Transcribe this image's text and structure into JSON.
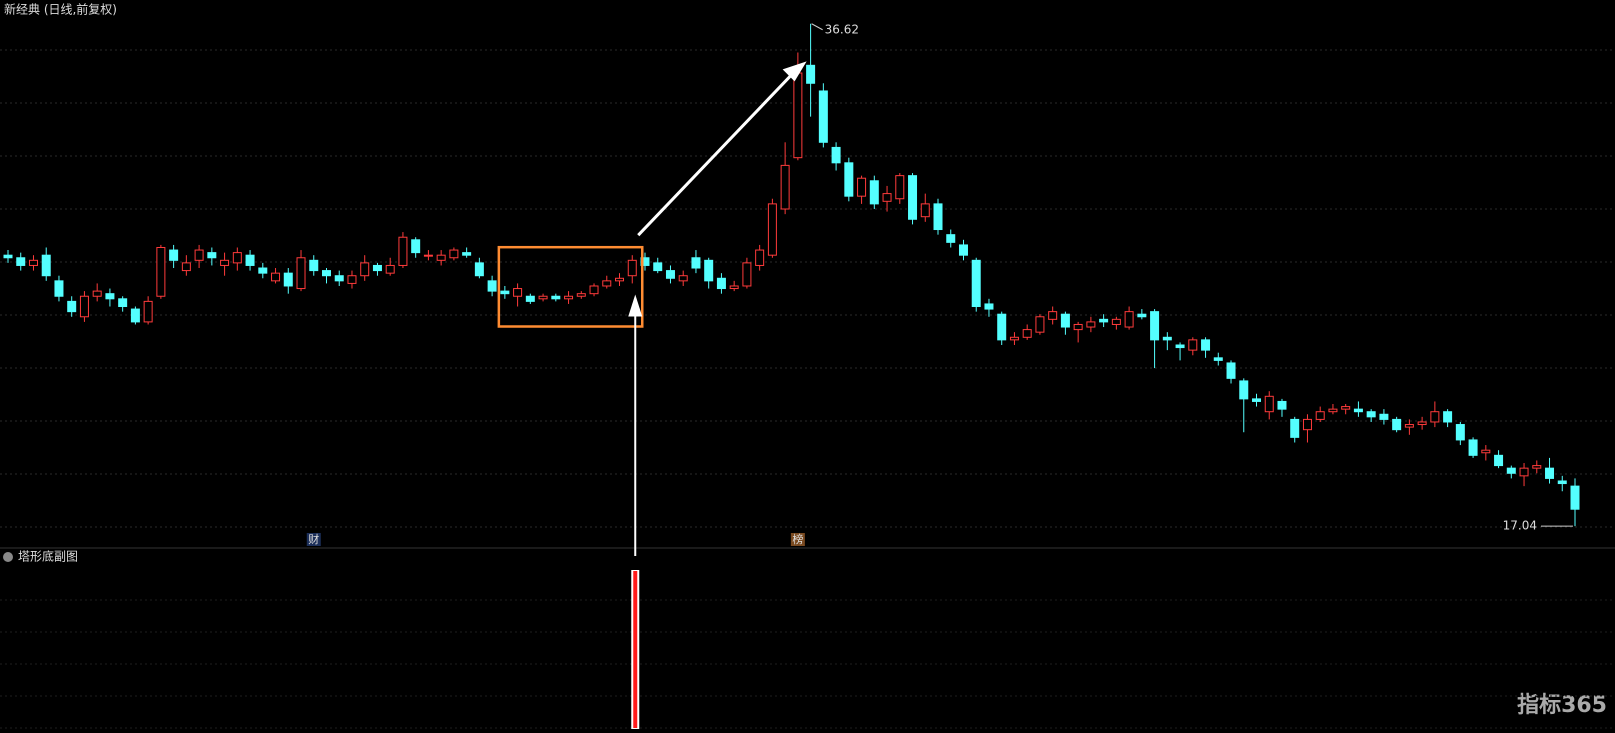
{
  "chart_data": {
    "type": "candlestick",
    "title": "新经典 (日线,前复权)",
    "up_color": "#ff3b3b",
    "down_color": "#54ffff",
    "ylim": [
      16.5,
      37.0
    ],
    "open": [
      27.6,
      27.5,
      27.2,
      27.6,
      26.6,
      25.8,
      25.2,
      26.0,
      26.1,
      25.9,
      25.5,
      25.0,
      26.0,
      27.8,
      27.0,
      27.4,
      27.7,
      27.2,
      27.3,
      27.6,
      27.1,
      26.6,
      26.9,
      26.3,
      27.4,
      27.0,
      26.8,
      26.5,
      26.8,
      27.2,
      26.9,
      27.2,
      28.2,
      27.6,
      27.4,
      27.5,
      27.7,
      27.3,
      26.6,
      26.2,
      26.0,
      26.0,
      25.9,
      26.0,
      25.9,
      26.0,
      26.1,
      26.4,
      26.6,
      26.8,
      27.5,
      27.3,
      27.0,
      26.6,
      27.5,
      27.4,
      26.7,
      26.3,
      26.4,
      27.2,
      27.6,
      29.4,
      31.4,
      35.0,
      34.0,
      31.8,
      31.2,
      29.9,
      30.5,
      29.7,
      29.8,
      30.7,
      29.1,
      29.6,
      28.4,
      28.0,
      27.4,
      25.7,
      25.3,
      24.3,
      24.4,
      24.6,
      25.1,
      25.3,
      24.7,
      24.8,
      25.1,
      24.9,
      24.8,
      25.3,
      25.4,
      24.4,
      24.1,
      23.9,
      24.3,
      23.6,
      23.4,
      22.7,
      22.0,
      21.5,
      21.9,
      21.2,
      20.8,
      21.2,
      21.5,
      21.6,
      21.6,
      21.5,
      21.4,
      21.2,
      20.9,
      21.0,
      21.1,
      21.5,
      21.0,
      20.4,
      19.9,
      19.8,
      19.3,
      19.0,
      19.3,
      19.3,
      18.8,
      18.6
    ],
    "high": [
      27.8,
      27.7,
      27.6,
      27.9,
      26.8,
      26.0,
      26.2,
      26.5,
      26.3,
      26.0,
      25.6,
      26.0,
      28.0,
      28.0,
      27.6,
      28.0,
      27.9,
      27.7,
      27.9,
      27.8,
      27.3,
      27.1,
      27.1,
      27.8,
      27.6,
      27.1,
      27.0,
      27.0,
      27.6,
      27.3,
      27.5,
      28.5,
      28.3,
      27.8,
      27.8,
      27.9,
      27.9,
      27.5,
      26.8,
      26.4,
      26.5,
      26.1,
      26.1,
      26.1,
      26.2,
      26.2,
      26.5,
      26.8,
      26.9,
      27.6,
      27.7,
      27.5,
      27.2,
      27.0,
      27.8,
      27.5,
      26.9,
      26.6,
      27.5,
      28.0,
      29.8,
      32.0,
      35.5,
      36.62,
      34.3,
      32.0,
      31.4,
      30.7,
      30.7,
      30.3,
      30.8,
      30.8,
      30.0,
      29.8,
      28.6,
      28.2,
      27.5,
      25.9,
      25.4,
      24.6,
      24.9,
      25.3,
      25.6,
      25.4,
      25.0,
      25.2,
      25.3,
      25.2,
      25.6,
      25.5,
      25.5,
      24.6,
      24.2,
      24.4,
      24.4,
      23.8,
      23.5,
      22.8,
      22.2,
      22.3,
      22.0,
      21.3,
      21.4,
      21.7,
      21.8,
      21.8,
      21.9,
      21.6,
      21.6,
      21.3,
      21.2,
      21.3,
      21.9,
      21.6,
      21.1,
      20.5,
      20.2,
      20.0,
      19.4,
      19.5,
      19.6,
      19.7,
      19.0,
      18.9
    ],
    "low": [
      27.3,
      27.0,
      27.0,
      26.6,
      25.8,
      25.2,
      25.0,
      25.8,
      25.6,
      25.4,
      24.9,
      24.9,
      25.9,
      27.1,
      26.8,
      27.1,
      27.2,
      26.8,
      27.0,
      27.0,
      26.7,
      26.5,
      26.1,
      26.2,
      26.8,
      26.5,
      26.4,
      26.3,
      26.6,
      26.8,
      26.8,
      27.1,
      27.5,
      27.4,
      27.2,
      27.4,
      27.5,
      26.7,
      26.0,
      25.9,
      25.6,
      25.7,
      25.8,
      25.8,
      25.7,
      25.9,
      26.0,
      26.3,
      26.4,
      26.5,
      27.0,
      26.9,
      26.5,
      26.4,
      26.9,
      26.3,
      26.1,
      26.2,
      26.3,
      27.0,
      27.5,
      29.2,
      31.3,
      33.0,
      31.8,
      30.9,
      29.7,
      29.6,
      29.4,
      29.3,
      29.6,
      28.8,
      28.9,
      28.4,
      27.9,
      27.4,
      25.4,
      25.2,
      24.1,
      24.1,
      24.3,
      24.5,
      24.9,
      24.5,
      24.2,
      24.6,
      24.8,
      24.7,
      24.7,
      25.1,
      23.2,
      23.9,
      23.5,
      23.7,
      23.6,
      23.3,
      22.6,
      20.7,
      21.7,
      21.2,
      21.3,
      20.3,
      20.3,
      21.1,
      21.4,
      21.4,
      21.3,
      21.1,
      21.0,
      20.7,
      20.6,
      20.8,
      20.9,
      20.9,
      20.2,
      19.7,
      19.6,
      19.3,
      18.9,
      18.6,
      19.1,
      18.7,
      18.4,
      17.04
    ],
    "close": [
      27.5,
      27.2,
      27.4,
      26.8,
      26.0,
      25.4,
      26.0,
      26.2,
      25.9,
      25.6,
      25.0,
      25.8,
      27.9,
      27.4,
      27.3,
      27.8,
      27.5,
      27.4,
      27.7,
      27.2,
      26.9,
      26.9,
      26.4,
      27.5,
      27.0,
      26.8,
      26.6,
      26.8,
      27.3,
      27.0,
      27.2,
      28.3,
      27.7,
      27.6,
      27.6,
      27.8,
      27.6,
      26.8,
      26.2,
      26.1,
      26.3,
      25.8,
      26.0,
      25.9,
      26.0,
      26.1,
      26.4,
      26.6,
      26.7,
      27.4,
      27.2,
      27.0,
      26.7,
      26.8,
      27.1,
      26.6,
      26.3,
      26.4,
      27.3,
      27.8,
      29.6,
      31.1,
      34.7,
      34.3,
      32.0,
      31.2,
      29.9,
      30.6,
      29.6,
      30.0,
      30.7,
      29.0,
      29.6,
      28.6,
      28.1,
      27.6,
      25.6,
      25.5,
      24.3,
      24.4,
      24.7,
      25.2,
      25.4,
      24.8,
      24.9,
      25.0,
      25.0,
      25.1,
      25.4,
      25.2,
      24.3,
      24.3,
      24.0,
      24.3,
      23.9,
      23.5,
      22.8,
      22.0,
      21.9,
      22.1,
      21.6,
      20.5,
      21.2,
      21.5,
      21.6,
      21.7,
      21.5,
      21.3,
      21.2,
      20.8,
      21.0,
      21.1,
      21.5,
      21.1,
      20.4,
      19.8,
      20.0,
      19.4,
      19.1,
      19.3,
      19.4,
      18.9,
      18.7,
      17.7
    ],
    "events": [
      {
        "index": 24,
        "label": "财"
      },
      {
        "index": 62,
        "label": "榜"
      }
    ],
    "indicator": {
      "title": "塔形底副图",
      "signal_candles": [
        49
      ],
      "color": "#ff1a1a"
    },
    "watermark": "指标365"
  }
}
